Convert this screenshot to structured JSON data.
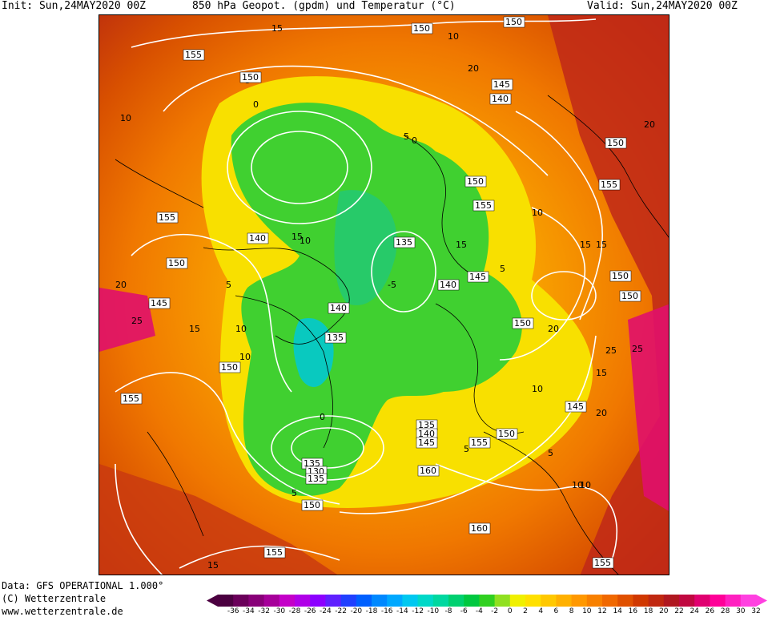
{
  "header": {
    "init": "Init: Sun,24MAY2020 00Z",
    "title": "850 hPa Geopot. (gpdm) und Temperatur (°C)",
    "valid": "Valid: Sun,24MAY2020 00Z"
  },
  "footer": {
    "data_source": "Data: GFS OPERATIONAL 1.000°",
    "copyright": "(C) Wetterzentrale",
    "url": "www.wetterzentrale.de"
  },
  "legend": {
    "ticks": [
      "-36",
      "-34",
      "-32",
      "-30",
      "-28",
      "-26",
      "-24",
      "-22",
      "-20",
      "-18",
      "-16",
      "-14",
      "-12",
      "-10",
      "-8",
      "-6",
      "-4",
      "-2",
      "0",
      "2",
      "4",
      "6",
      "8",
      "10",
      "12",
      "14",
      "16",
      "18",
      "20",
      "22",
      "24",
      "26",
      "28",
      "30",
      "32"
    ],
    "colors": [
      "#4b0040",
      "#6a005a",
      "#880078",
      "#a6009a",
      "#c400c8",
      "#b000e8",
      "#8c00ff",
      "#6020ff",
      "#2040ff",
      "#0060ff",
      "#0088ff",
      "#00a8ff",
      "#00c8f0",
      "#00d8c8",
      "#00d8a0",
      "#00d070",
      "#00c840",
      "#30d020",
      "#90e020",
      "#f0f000",
      "#ffe000",
      "#ffc800",
      "#ffb000",
      "#ff9800",
      "#f88000",
      "#f06800",
      "#e05000",
      "#d03800",
      "#c02810",
      "#b01820",
      "#c00840",
      "#e00070",
      "#ff0098",
      "#ff20c0",
      "#ff40e0"
    ]
  },
  "map": {
    "geopotential_labels": [
      "150",
      "150",
      "155",
      "150",
      "145",
      "140",
      "150",
      "155",
      "155",
      "140",
      "135",
      "150",
      "155",
      "150",
      "140",
      "145",
      "150",
      "150",
      "145",
      "135",
      "140",
      "150",
      "150",
      "135",
      "140",
      "145",
      "155",
      "150",
      "160",
      "135",
      "130",
      "135",
      "150",
      "160",
      "155",
      "155",
      "145",
      "155"
    ],
    "temperature_labels": [
      "15",
      "10",
      "5",
      "0",
      "5",
      "10",
      "15",
      "20",
      "25",
      "15",
      "10",
      "5",
      "0",
      "-5",
      "5",
      "10",
      "15",
      "20",
      "25",
      "10",
      "5",
      "0",
      "5",
      "10",
      "15",
      "20",
      "25",
      "5",
      "10",
      "15",
      "20",
      "10",
      "15",
      "20",
      "15",
      "10"
    ]
  }
}
